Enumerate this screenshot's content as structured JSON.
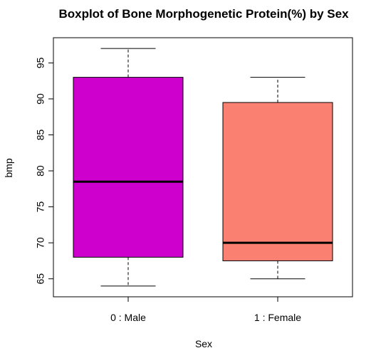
{
  "chart_data": {
    "type": "boxplot",
    "title": "Boxplot of Bone Morphogenetic Protein(%) by Sex",
    "xlabel": "Sex",
    "ylabel": "bmp",
    "ylim": [
      62.5,
      98.5
    ],
    "yticks": [
      65,
      70,
      75,
      80,
      85,
      90,
      95
    ],
    "grid": false,
    "categories": [
      "0 : Male",
      "1 : Female"
    ],
    "boxes": [
      {
        "category": "0 : Male",
        "min": 64,
        "q1": 68,
        "median": 78.5,
        "q3": 93,
        "max": 97,
        "color": "#CD00CD"
      },
      {
        "category": "1 : Female",
        "min": 65,
        "q1": 67.5,
        "median": 70,
        "q3": 89.5,
        "max": 93,
        "color": "#FA8072"
      }
    ]
  }
}
